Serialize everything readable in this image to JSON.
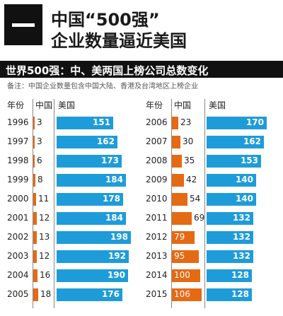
{
  "header": {
    "badge_icon": "dash-icon",
    "title_line1": "中国“500强”",
    "title_line2": "企业数量逼近美国"
  },
  "subtitle": "世界500强：中、美两国上榜公司总数变化",
  "note": "备注：中国企业数量包含中国大陆、香港及台湾地区上榜企业",
  "colors": {
    "china": "#e56a14",
    "usa": "#1e9cd9",
    "dark": "#111111"
  },
  "chart_data": {
    "type": "bar",
    "column_headers": {
      "year": "年份",
      "china": "中国",
      "usa": "美国"
    },
    "series": [
      {
        "name": "中国",
        "color": "#e56a14"
      },
      {
        "name": "美国",
        "color": "#1e9cd9"
      }
    ],
    "rows": [
      {
        "year": "1996",
        "china": 3,
        "usa": 151
      },
      {
        "year": "1997",
        "china": 3,
        "usa": 162
      },
      {
        "year": "1998",
        "china": 6,
        "usa": 173
      },
      {
        "year": "1999",
        "china": 8,
        "usa": 184
      },
      {
        "year": "2000",
        "china": 11,
        "usa": 178
      },
      {
        "year": "2001",
        "china": 12,
        "usa": 184
      },
      {
        "year": "2002",
        "china": 13,
        "usa": 198
      },
      {
        "year": "2003",
        "china": 12,
        "usa": 192
      },
      {
        "year": "2004",
        "china": 16,
        "usa": 190
      },
      {
        "year": "2005",
        "china": 18,
        "usa": 176
      },
      {
        "year": "2006",
        "china": 23,
        "usa": 170
      },
      {
        "year": "2007",
        "china": 30,
        "usa": 162
      },
      {
        "year": "2008",
        "china": 35,
        "usa": 153
      },
      {
        "year": "2009",
        "china": 42,
        "usa": 140
      },
      {
        "year": "2010",
        "china": 54,
        "usa": 140
      },
      {
        "year": "2011",
        "china": 69,
        "usa": 132
      },
      {
        "year": "2012",
        "china": 79,
        "usa": 132
      },
      {
        "year": "2013",
        "china": 95,
        "usa": 132
      },
      {
        "year": "2014",
        "china": 100,
        "usa": 128
      },
      {
        "year": "2015",
        "china": 106,
        "usa": 128
      }
    ]
  }
}
